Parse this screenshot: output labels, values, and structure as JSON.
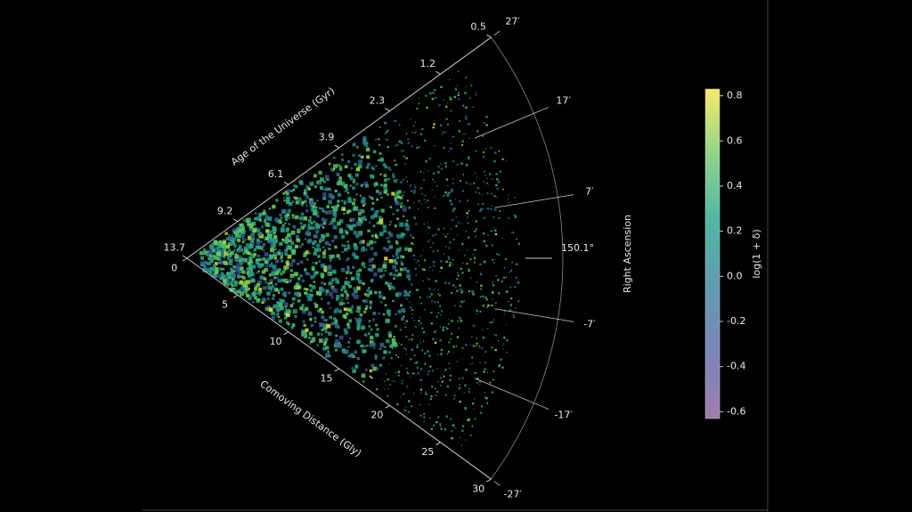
{
  "chart_data": {
    "type": "wedge",
    "r_title": "Comoving Distance (Gly)",
    "age_title": "Age of the Universe (Gyr)",
    "theta_title": "Right Ascension",
    "rlim": [
      0,
      30
    ],
    "rticks": [
      0,
      5,
      10,
      15,
      20,
      25,
      30
    ],
    "age_ticks": [
      13.7,
      9.2,
      6.1,
      3.9,
      2.3,
      1.2,
      0.5
    ],
    "thetalim": [
      -27,
      27
    ],
    "theta_center": {
      "value": 150.1,
      "label": "150.1°"
    },
    "thetaticks": [
      {
        "value": 27,
        "label": "27′"
      },
      {
        "value": 17,
        "label": "17′"
      },
      {
        "value": 7,
        "label": "7′"
      },
      {
        "value": -7,
        "label": "-7′"
      },
      {
        "value": -17,
        "label": "-17′"
      },
      {
        "value": -27,
        "label": "-27′"
      }
    ],
    "colorbar": {
      "label": "log(1 + δ)",
      "lim": [
        -0.63,
        0.83
      ],
      "ticks": [
        0.8,
        0.6,
        0.4,
        0.2,
        {
          "value": 0,
          "label": "0.0"
        },
        -0.2,
        -0.4,
        -0.6
      ]
    }
  }
}
